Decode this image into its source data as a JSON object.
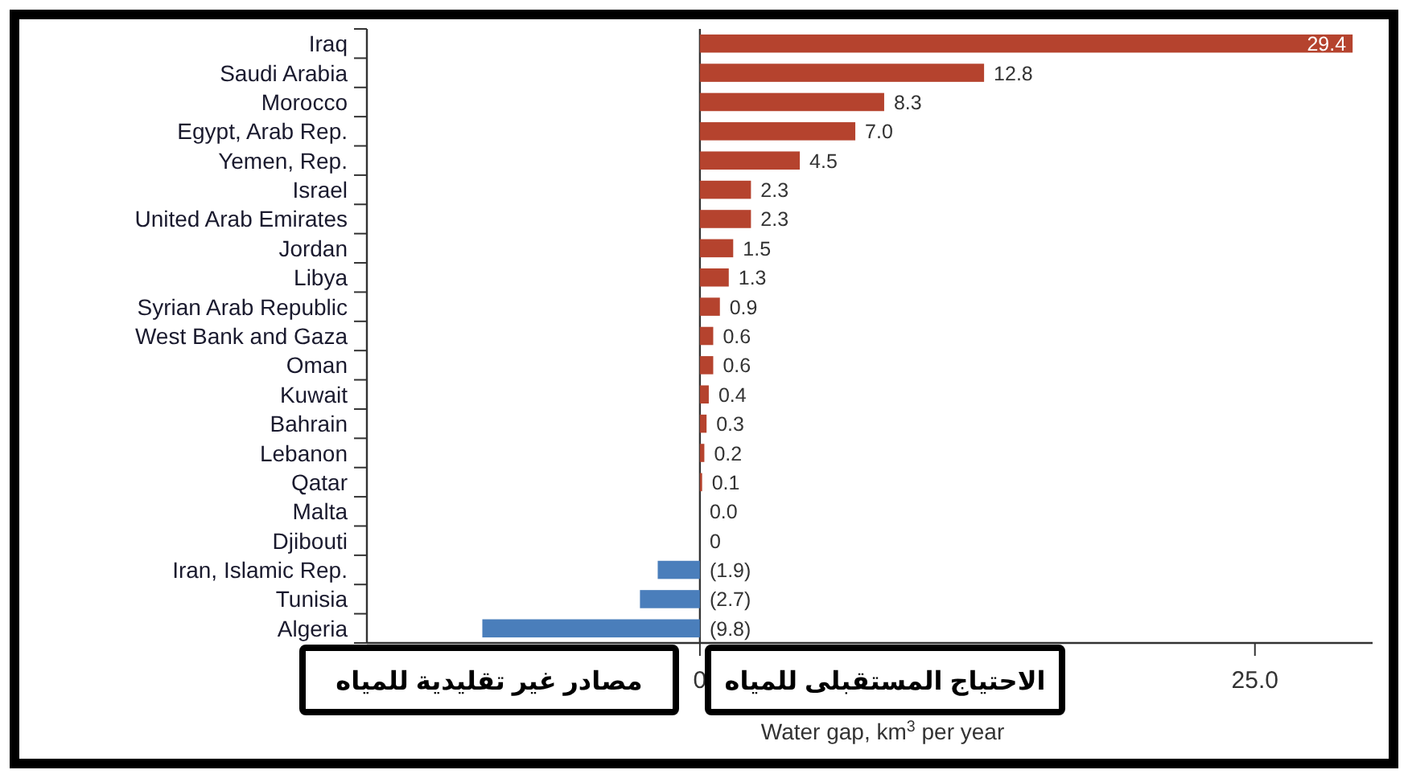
{
  "chart_data": {
    "type": "bar",
    "orientation": "horizontal",
    "categories": [
      "Iraq",
      "Saudi Arabia",
      "Morocco",
      "Egypt, Arab Rep.",
      "Yemen, Rep.",
      "Israel",
      "United Arab Emirates",
      "Jordan",
      "Libya",
      "Syrian Arab Republic",
      "West Bank and Gaza",
      "Oman",
      "Kuwait",
      "Bahrain",
      "Lebanon",
      "Qatar",
      "Malta",
      "Djibouti",
      "Iran, Islamic Rep.",
      "Tunisia",
      "Algeria"
    ],
    "values": [
      29.4,
      12.8,
      8.3,
      7.0,
      4.5,
      2.3,
      2.3,
      1.5,
      1.3,
      0.9,
      0.6,
      0.6,
      0.4,
      0.3,
      0.2,
      0.1,
      0.0,
      0,
      -1.9,
      -2.7,
      -9.8
    ],
    "colors": [
      "#b5432e",
      "#b5432e",
      "#b5432e",
      "#b5432e",
      "#b5432e",
      "#b5432e",
      "#b5432e",
      "#b5432e",
      "#b5432e",
      "#b5432e",
      "#b5432e",
      "#b5432e",
      "#b5432e",
      "#b5432e",
      "#b5432e",
      "#b5432e",
      "#b5432e",
      "#b5432e",
      "#4a7ebb",
      "#4a7ebb",
      "#4a7ebb"
    ],
    "value_labels": [
      "29.4",
      "12.8",
      "8.3",
      "7.0",
      "4.5",
      "2.3",
      "2.3",
      "1.5",
      "1.3",
      "0.9",
      "0.6",
      "0.6",
      "0.4",
      "0.3",
      "0.2",
      "0.1",
      "0.0",
      "0",
      "(1.9)",
      "(2.7)",
      "(9.8)"
    ],
    "xlabel": "Water gap, km$^{3}$ per year",
    "xlim": [
      -15,
      30.3
    ],
    "xticks": [
      {
        "value": 0,
        "label": "0"
      },
      {
        "value": 25,
        "label": "25.0"
      }
    ],
    "annotations": [
      "مصادر غير تقليدية للمياه",
      "الاحتياج المستقبلى للمياه"
    ]
  }
}
